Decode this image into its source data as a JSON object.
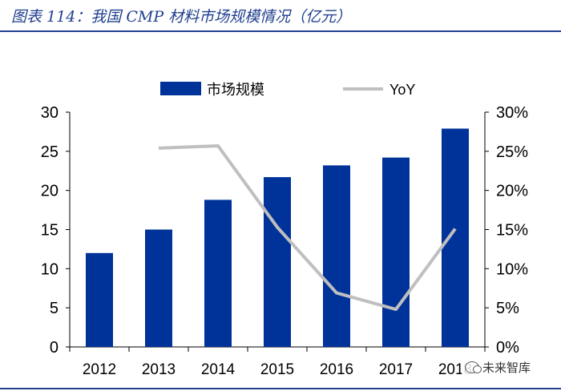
{
  "caption": "图表 114：我国 CMP 材料市场规模情况（亿元）",
  "colors": {
    "bar": "#003399",
    "line": "#bfbfbf",
    "rule": "#1f3f8f"
  },
  "watermark": "未来智库",
  "chart_data": {
    "type": "bar+line",
    "categories": [
      "2012",
      "2013",
      "2014",
      "2015",
      "2016",
      "2017",
      "2018"
    ],
    "series": [
      {
        "name": "市场规模",
        "type": "bar",
        "axis": "left",
        "values": [
          12.0,
          15.0,
          18.8,
          21.7,
          23.2,
          24.2,
          27.9
        ]
      },
      {
        "name": "YoY",
        "type": "line",
        "axis": "right",
        "values": [
          null,
          25.4,
          25.7,
          15.3,
          6.9,
          4.8,
          15.1
        ]
      }
    ],
    "y_left": {
      "min": 0,
      "max": 30,
      "ticks": [
        "0",
        "5",
        "10",
        "15",
        "20",
        "25",
        "30"
      ]
    },
    "y_right": {
      "min": 0,
      "max": 30,
      "ticks": [
        "0%",
        "5%",
        "10%",
        "15%",
        "20%",
        "25%",
        "30%"
      ]
    },
    "legend": {
      "position": "top"
    },
    "grid": false
  }
}
